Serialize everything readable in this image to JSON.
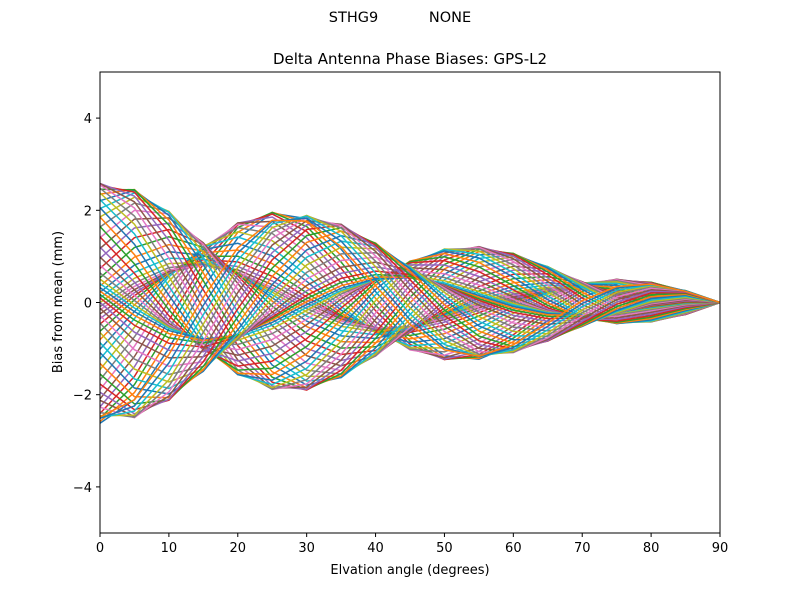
{
  "figure": {
    "suptitle": "STHG9           NONE"
  },
  "chart_data": {
    "type": "line",
    "title": "Delta Antenna Phase Biases: GPS-L2",
    "xlabel": "Elvation angle (degrees)",
    "ylabel": "Bias from mean (mm)",
    "xlim": [
      0,
      90
    ],
    "ylim": [
      -5,
      5
    ],
    "xticks": [
      0,
      10,
      20,
      30,
      40,
      50,
      60,
      70,
      80,
      90
    ],
    "yticks": [
      -4,
      -2,
      0,
      2,
      4
    ],
    "grid": false,
    "legend": "none",
    "x": [
      0,
      5,
      10,
      15,
      20,
      25,
      30,
      35,
      40,
      45,
      50,
      55,
      60,
      65,
      70,
      75,
      80,
      85,
      90
    ],
    "series_count": 72,
    "color_cycle": [
      "#1f77b4",
      "#ff7f0e",
      "#2ca02c",
      "#d62728",
      "#9467bd",
      "#8c564b",
      "#e377c2",
      "#7f7f7f",
      "#bcbd22",
      "#17becf"
    ],
    "series_model": "y(e) = A*(1 - e/90)^0.8 * cos(2*pi*e/p + phi), p = 55 deg",
    "series_amplitudes": [
      2.62,
      2.59,
      2.55,
      2.49,
      2.41,
      2.31,
      2.19,
      2.05,
      1.9,
      1.74,
      1.57,
      1.4,
      1.25,
      1.12,
      1.02,
      0.96,
      0.94,
      0.96,
      1.02,
      1.12,
      1.25,
      1.4,
      1.57,
      1.74,
      1.9,
      2.05,
      2.19,
      2.31,
      2.41,
      2.49,
      2.55,
      2.59,
      2.62,
      2.63,
      2.62,
      2.59,
      2.55,
      2.49,
      2.41,
      2.31,
      2.19,
      2.05,
      1.9,
      1.74,
      1.57,
      1.4,
      1.25,
      1.12,
      1.02,
      0.96,
      0.94,
      0.96,
      1.02,
      1.12,
      1.25,
      1.4,
      1.57,
      1.74,
      1.9,
      2.05,
      2.19,
      2.31,
      2.41,
      2.49,
      2.55,
      2.59,
      2.62,
      2.63,
      2.62,
      2.59,
      2.55,
      2.49
    ],
    "series_phases_rad": [
      3.14,
      3.23,
      3.32,
      3.4,
      3.49,
      3.58,
      3.67,
      3.75,
      3.84,
      3.93,
      4.01,
      4.1,
      4.19,
      4.28,
      4.36,
      4.45,
      4.54,
      4.62,
      4.71,
      4.8,
      4.89,
      4.97,
      5.06,
      5.15,
      5.24,
      5.32,
      5.41,
      5.5,
      5.59,
      5.67,
      5.76,
      5.85,
      5.93,
      6.02,
      6.11,
      6.2,
      0.0,
      0.09,
      0.17,
      0.26,
      0.35,
      0.44,
      0.52,
      0.61,
      0.7,
      0.79,
      0.87,
      0.96,
      1.05,
      1.13,
      1.22,
      1.31,
      1.4,
      1.48,
      1.57,
      1.66,
      1.75,
      1.83,
      1.92,
      2.01,
      2.09,
      2.18,
      2.27,
      2.36,
      2.44,
      2.53,
      2.62,
      2.71,
      2.79,
      2.88,
      2.97,
      3.05
    ]
  }
}
